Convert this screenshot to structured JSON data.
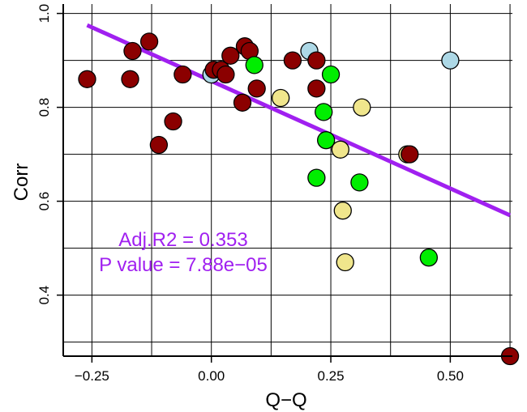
{
  "chart_data": {
    "type": "scatter",
    "xlabel": "Q−Q",
    "ylabel": "Corr",
    "xlim": [
      -0.31,
      0.63
    ],
    "ylim": [
      0.27,
      1.02
    ],
    "x_ticks": [
      -0.25,
      0.0,
      0.25,
      0.5
    ],
    "x_tick_labels": [
      "−0.25",
      "0.00",
      "0.25",
      "0.50"
    ],
    "y_ticks": [
      0.4,
      0.6,
      0.8,
      1.0
    ],
    "y_tick_labels": [
      "0.4",
      "0.6",
      "0.8",
      "1.0"
    ],
    "x_grid": [
      -0.25,
      -0.125,
      0.0,
      0.125,
      0.25,
      0.375,
      0.5,
      0.625
    ],
    "y_grid": [
      0.3,
      0.4,
      0.5,
      0.6,
      0.7,
      0.8,
      0.9,
      1.0
    ],
    "grid": true,
    "colors": {
      "darkred": "#8b0000",
      "green": "#00ee00",
      "khaki": "#f0e68c",
      "lightblue": "#add8e6",
      "regression": "#a020f0",
      "annotation": "#a020f0"
    },
    "points": [
      {
        "x": -0.26,
        "y": 0.86,
        "color": "darkred"
      },
      {
        "x": -0.17,
        "y": 0.86,
        "color": "darkred"
      },
      {
        "x": -0.165,
        "y": 0.92,
        "color": "darkred"
      },
      {
        "x": -0.13,
        "y": 0.94,
        "color": "darkred"
      },
      {
        "x": -0.11,
        "y": 0.72,
        "color": "darkred"
      },
      {
        "x": -0.08,
        "y": 0.77,
        "color": "darkred"
      },
      {
        "x": -0.06,
        "y": 0.87,
        "color": "darkred"
      },
      {
        "x": 0.0,
        "y": 0.87,
        "color": "lightblue"
      },
      {
        "x": 0.005,
        "y": 0.88,
        "color": "darkred"
      },
      {
        "x": 0.02,
        "y": 0.88,
        "color": "darkred"
      },
      {
        "x": 0.03,
        "y": 0.87,
        "color": "darkred"
      },
      {
        "x": 0.04,
        "y": 0.91,
        "color": "darkred"
      },
      {
        "x": 0.065,
        "y": 0.81,
        "color": "darkred"
      },
      {
        "x": 0.07,
        "y": 0.93,
        "color": "darkred"
      },
      {
        "x": 0.08,
        "y": 0.92,
        "color": "darkred"
      },
      {
        "x": 0.095,
        "y": 0.84,
        "color": "darkred"
      },
      {
        "x": 0.09,
        "y": 0.89,
        "color": "green"
      },
      {
        "x": 0.145,
        "y": 0.82,
        "color": "khaki"
      },
      {
        "x": 0.17,
        "y": 0.9,
        "color": "darkred"
      },
      {
        "x": 0.205,
        "y": 0.92,
        "color": "lightblue"
      },
      {
        "x": 0.22,
        "y": 0.9,
        "color": "darkred"
      },
      {
        "x": 0.22,
        "y": 0.84,
        "color": "darkred"
      },
      {
        "x": 0.22,
        "y": 0.65,
        "color": "green"
      },
      {
        "x": 0.235,
        "y": 0.79,
        "color": "green"
      },
      {
        "x": 0.24,
        "y": 0.73,
        "color": "green"
      },
      {
        "x": 0.25,
        "y": 0.87,
        "color": "green"
      },
      {
        "x": 0.27,
        "y": 0.71,
        "color": "khaki"
      },
      {
        "x": 0.275,
        "y": 0.58,
        "color": "khaki"
      },
      {
        "x": 0.28,
        "y": 0.47,
        "color": "khaki"
      },
      {
        "x": 0.31,
        "y": 0.64,
        "color": "green"
      },
      {
        "x": 0.315,
        "y": 0.8,
        "color": "khaki"
      },
      {
        "x": 0.41,
        "y": 0.7,
        "color": "khaki"
      },
      {
        "x": 0.415,
        "y": 0.7,
        "color": "darkred"
      },
      {
        "x": 0.455,
        "y": 0.48,
        "color": "green"
      },
      {
        "x": 0.5,
        "y": 0.9,
        "color": "lightblue"
      },
      {
        "x": 0.625,
        "y": 0.27,
        "color": "darkred"
      }
    ],
    "regression_line": {
      "x1": -0.26,
      "y1": 0.975,
      "x2": 0.625,
      "y2": 0.57
    },
    "annotations": [
      "Adj.R2 = 0.353",
      "P value = 7.88e−05"
    ]
  }
}
